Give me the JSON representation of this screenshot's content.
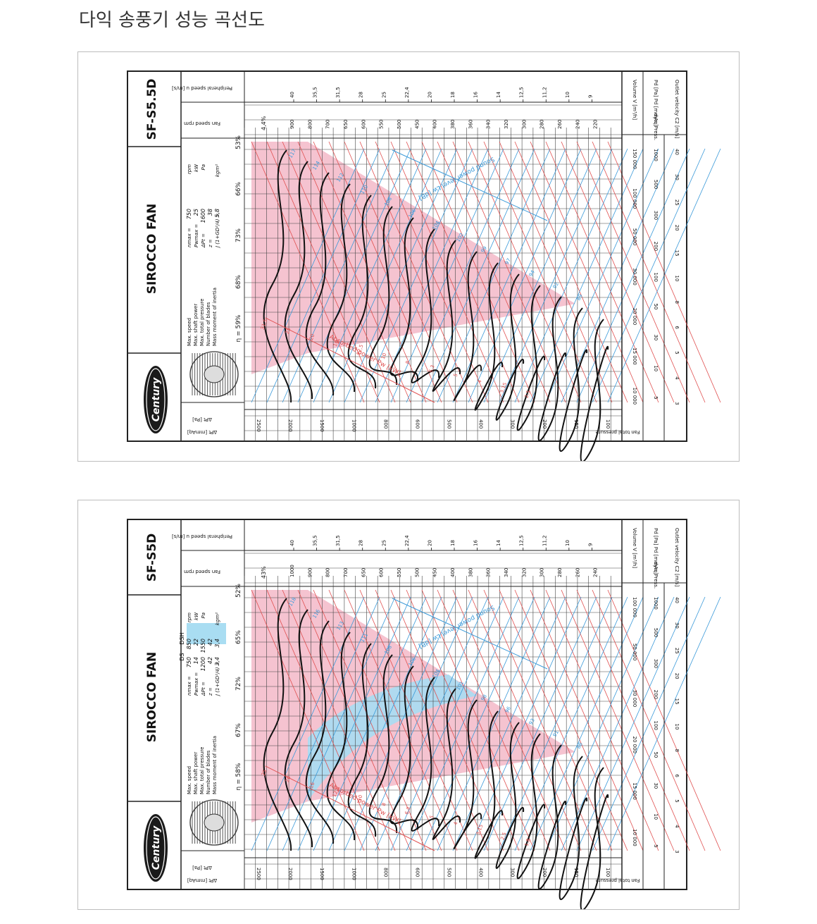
{
  "page": {
    "title": "다익 송풍기 성능 곡선도"
  },
  "colors": {
    "red": "#e05050",
    "blue": "#3a9ad9",
    "pink": "#f3b9c8",
    "lightblue": "#a9ddf2",
    "black": "#111111",
    "border": "#222222"
  },
  "chart_data": [
    {
      "type": "fan-performance-curve",
      "brand": "Century",
      "series_name": "SIROCCO FAN",
      "model": "SF-S5.5D",
      "spec_labels": [
        "Max. speed",
        "Max. shaft power",
        "Max. total pressure",
        "Number of blades",
        "Mass moment of inertia"
      ],
      "spec_symbols": [
        "nmax =",
        "Pwmax =",
        "ΔPt =",
        "z =",
        "J (1+GD²/4) ="
      ],
      "spec_columns": [
        {
          "header": "",
          "values": [
            "750",
            "25",
            "1600",
            "38",
            "5,8"
          ]
        }
      ],
      "spec_units": [
        "rpm",
        "kW",
        "Pa",
        "",
        "kgm²"
      ],
      "efficiency_labels": [
        "η = 59%",
        "68%",
        "73%",
        "66%",
        "53%"
      ],
      "peak_efficiency": "4,4%",
      "rpm_ticks": [
        "900",
        "800",
        "700",
        "650",
        "600",
        "550",
        "500",
        "450",
        "400",
        "380",
        "360",
        "340",
        "320",
        "300",
        "280",
        "260",
        "240",
        "220"
      ],
      "peripheral_speed_ticks": [
        "40",
        "35,5",
        "31,5",
        "28",
        "25",
        "22,4",
        "20",
        "18",
        "16",
        "14",
        "12,5",
        "11,2",
        "10",
        "9"
      ],
      "pressure_ticks": [
        "2500",
        "2000",
        "1500",
        "1000",
        "800",
        "600",
        "500",
        "400",
        "300",
        "200",
        "150",
        "100"
      ],
      "volume_ticks": [
        "150 000",
        "100 000",
        "50 000",
        "30 000",
        "20 000",
        "15 000",
        "10 000"
      ],
      "dyn_press_ticks": [
        "1000",
        "500",
        "300",
        "200",
        "100",
        "50",
        "30",
        "10",
        "5"
      ],
      "outlet_velocity_ticks": [
        "40",
        "30",
        "25",
        "20",
        "15",
        "10",
        "8",
        "6",
        "5",
        "4",
        "3"
      ],
      "sound_labels": [
        "117",
        "114",
        "112",
        "110",
        "108",
        "106",
        "104",
        "102",
        "99",
        "97",
        "94",
        "92",
        "89"
      ],
      "power_labels": [
        "31,5",
        "25",
        "20",
        "16",
        "12,5",
        "10",
        "8",
        "6,3",
        "5",
        "4",
        "3,15",
        "2,5"
      ],
      "annotation_sound": "Sound power level Lw [dB]",
      "annotation_power": "Absorbed power Pw [kW]",
      "label_volume": "Volume V [m³/h]",
      "label_dyn": "Pd [Pa]   Pd [mmAq]",
      "label_dyn_press": "dyn. Press.",
      "label_outlet": "Outlet velocity C2 [m/s]",
      "label_fan_speed": "Fan speed rpm",
      "label_peripheral": "Peripheral speed u [m/s]",
      "label_dp_pa": "ΔPt [Pa]",
      "label_dp_mm": "ΔPt [mmAq]",
      "label_total_pressure": "Fan total pressure",
      "highlight_lightblue": false
    },
    {
      "type": "fan-performance-curve",
      "brand": "Century",
      "series_name": "SIROCCO FAN",
      "model": "SF-S5D",
      "spec_labels": [
        "Max. speed",
        "Max. shaft power",
        "Max. total pressure",
        "Number of blades",
        "Mass moment of inertia"
      ],
      "spec_symbols": [
        "nmax =",
        "Pwmax =",
        "ΔPt =",
        "z =",
        "J (1+GD²/4) ="
      ],
      "spec_columns": [
        {
          "header": "DS",
          "values": [
            "750",
            "14",
            "1200",
            "42",
            "3,4"
          ]
        },
        {
          "header": "DSH",
          "values": [
            "850",
            "22",
            "1550",
            "42",
            "3,4"
          ]
        }
      ],
      "spec_units": [
        "rpm",
        "kW",
        "Pa",
        "",
        "kgm²"
      ],
      "efficiency_labels": [
        "η = 58%",
        "67%",
        "72%",
        "65%",
        "52%"
      ],
      "peak_efficiency": "43%",
      "rpm_ticks": [
        "1000",
        "900",
        "800",
        "700",
        "650",
        "600",
        "550",
        "500",
        "450",
        "400",
        "380",
        "360",
        "340",
        "320",
        "300",
        "280",
        "260",
        "240"
      ],
      "peripheral_speed_ticks": [
        "40",
        "35,5",
        "31,5",
        "28",
        "25",
        "22,4",
        "20",
        "18",
        "16",
        "14",
        "12,5",
        "11,2",
        "10",
        "9"
      ],
      "pressure_ticks": [
        "2500",
        "2000",
        "1500",
        "1000",
        "800",
        "600",
        "500",
        "400",
        "300",
        "200",
        "150",
        "100"
      ],
      "volume_ticks": [
        "100 000",
        "50 000",
        "30 000",
        "20 000",
        "15 000",
        "10 000"
      ],
      "dyn_press_ticks": [
        "1000",
        "500",
        "300",
        "200",
        "100",
        "50",
        "30",
        "10",
        "5"
      ],
      "outlet_velocity_ticks": [
        "40",
        "30",
        "25",
        "20",
        "15",
        "10",
        "8",
        "6",
        "5",
        "4",
        "3"
      ],
      "sound_labels": [
        "118",
        "116",
        "113",
        "111",
        "108",
        "106",
        "104",
        "101",
        "98",
        "96",
        "93",
        "91",
        "88"
      ],
      "power_labels": [
        "25",
        "20",
        "16",
        "12,5",
        "10",
        "8",
        "6,3",
        "5",
        "4",
        "3,15",
        "2,5",
        "1,8"
      ],
      "annotation_sound": "Sound power level Lw [dB]",
      "annotation_power": "Absorbed power Pw [kW]",
      "label_volume": "Volume V [m³/h]",
      "label_dyn": "Pd [Pa]   Pd [mmAq]",
      "label_dyn_press": "dyn. Press.",
      "label_outlet": "Outlet velocity C2 [m/s]",
      "label_fan_speed": "Fan speed rpm",
      "label_peripheral": "Peripheral speed u [m/s]",
      "label_dp_pa": "ΔPt [Pa]",
      "label_dp_mm": "ΔPt [mmAq]",
      "label_total_pressure": "Fan total pressure",
      "highlight_lightblue": true
    }
  ]
}
